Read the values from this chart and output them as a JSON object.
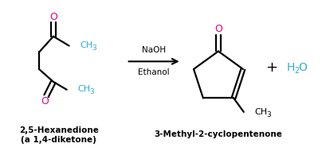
{
  "bg_color": "#ffffff",
  "line_color": "#000000",
  "oxygen_color": "#e6007e",
  "ch3_color": "#2aafd0",
  "water_color": "#2aafd0",
  "arrow_label_top": "NaOH",
  "arrow_label_bottom": "Ethanol",
  "label1": "2,5-Hexanedione",
  "label2": "(a 1,4-diketone)",
  "label3": "3-Methyl-2-cyclopentenone",
  "figsize": [
    4.04,
    1.95
  ],
  "dpi": 100
}
